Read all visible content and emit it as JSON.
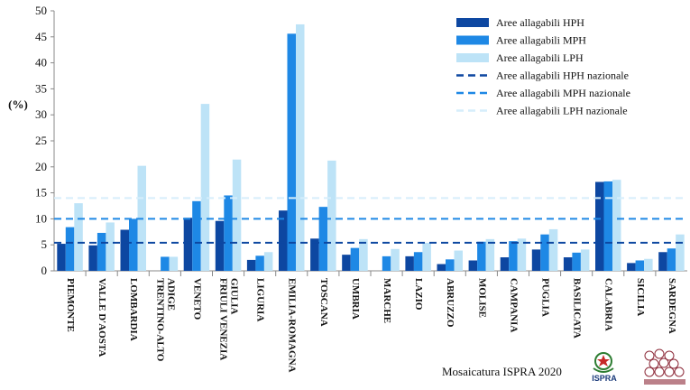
{
  "chart_data": {
    "type": "bar",
    "ylabel": "(%)",
    "ylim": [
      0,
      50
    ],
    "yticks": [
      0,
      5,
      10,
      15,
      20,
      25,
      30,
      35,
      40,
      45,
      50
    ],
    "categories": [
      "PIEMONTE",
      "VALLE D'AOSTA",
      "LOMBARDIA",
      "TRENTINO-ALTO ADIGE",
      "VENETO",
      "FRIULI VENEZIA GIULIA",
      "LIGURIA",
      "EMILIA-ROMAGNA",
      "TOSCANA",
      "UMBRIA",
      "MARCHE",
      "LAZIO",
      "ABRUZZO",
      "MOLISE",
      "CAMPANIA",
      "PUGLIA",
      "BASILICATA",
      "CALABRIA",
      "SICILIA",
      "SARDEGNA"
    ],
    "category_lines": [
      [
        "PIEMONTE"
      ],
      [
        "VALLE D'AOSTA"
      ],
      [
        "LOMBARDIA"
      ],
      [
        "TRENTINO-ALTO",
        "ADIGE"
      ],
      [
        "VENETO"
      ],
      [
        "FRIULI VENEZIA",
        "GIULIA"
      ],
      [
        "LIGURIA"
      ],
      [
        "EMILIA-ROMAGNA"
      ],
      [
        "TOSCANA"
      ],
      [
        "UMBRIA"
      ],
      [
        "MARCHE"
      ],
      [
        "LAZIO"
      ],
      [
        "ABRUZZO"
      ],
      [
        "MOLISE"
      ],
      [
        "CAMPANIA"
      ],
      [
        "PUGLIA"
      ],
      [
        "BASILICATA"
      ],
      [
        "CALABRIA"
      ],
      [
        "SICILIA"
      ],
      [
        "SARDEGNA"
      ]
    ],
    "series": [
      {
        "name": "Aree allagabili HPH",
        "color": "#0d47a1",
        "values": [
          5.2,
          4.9,
          7.9,
          0.0,
          10.2,
          9.6,
          2.1,
          11.6,
          6.2,
          3.1,
          0.0,
          2.8,
          1.3,
          2.0,
          2.6,
          4.1,
          2.6,
          17.1,
          1.5,
          3.6
        ]
      },
      {
        "name": "Aree allagabili MPH",
        "color": "#1e88e5",
        "values": [
          8.4,
          7.3,
          10.0,
          2.7,
          13.4,
          14.5,
          2.9,
          45.6,
          12.3,
          4.4,
          2.8,
          3.6,
          2.2,
          5.6,
          5.7,
          7.0,
          3.5,
          17.2,
          2.0,
          4.3
        ]
      },
      {
        "name": "Aree allagabili LPH",
        "color": "#bde3f7",
        "values": [
          13.0,
          9.3,
          20.2,
          2.7,
          32.1,
          21.4,
          3.6,
          47.4,
          21.2,
          6.1,
          4.2,
          5.4,
          3.9,
          6.1,
          6.2,
          8.0,
          4.1,
          17.5,
          2.3,
          7.0
        ]
      }
    ],
    "reference_lines": [
      {
        "name": "Aree allagabili HPH nazionale",
        "color": "#0d47a1",
        "value": 5.4
      },
      {
        "name": "Aree allagabili MPH nazionale",
        "color": "#1e88e5",
        "value": 10.0
      },
      {
        "name": "Aree allagabili LPH nazionale",
        "color": "#d6eefb",
        "value": 14.0
      }
    ],
    "legend_position": "top-right",
    "grid": false
  },
  "credit": "Mosaicatura ISPRA 2020",
  "logo_text": "ISPRA"
}
